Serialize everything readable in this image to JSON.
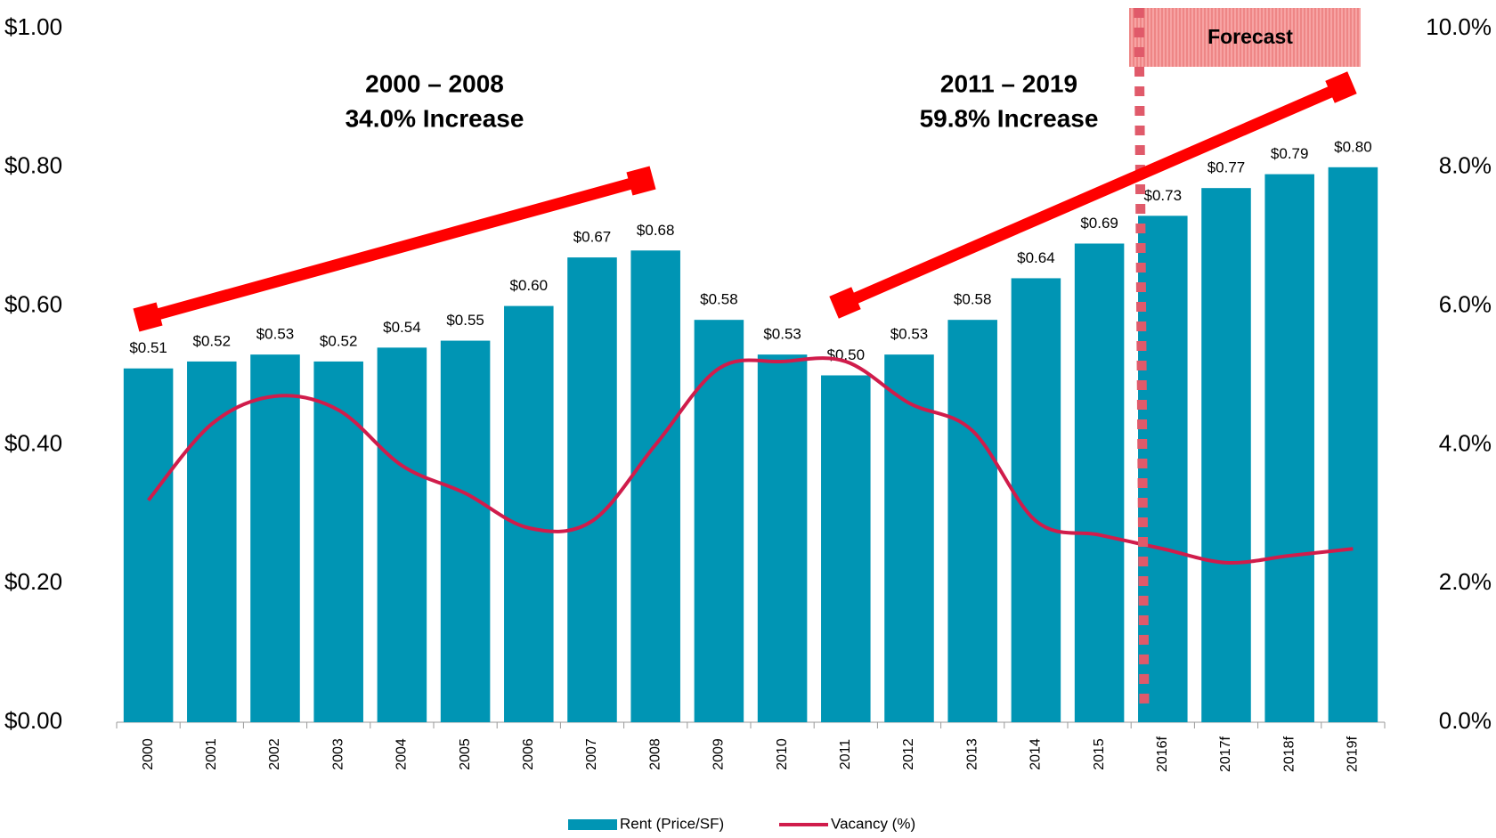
{
  "chart_data": {
    "type": "bar_line",
    "annotations": [
      "2000 – 2008",
      "34.0% Increase",
      "2011 – 2019",
      "59.8% Increase",
      "Forecast"
    ],
    "categories": [
      "2000",
      "2001",
      "2002",
      "2003",
      "2004",
      "2005",
      "2006",
      "2007",
      "2008",
      "2009",
      "2010",
      "2011",
      "2012",
      "2013",
      "2014",
      "2015",
      "2016f",
      "2017f",
      "2018f",
      "2019f"
    ],
    "series": [
      {
        "name": "Rent (Price/SF)",
        "color": "#0095b4",
        "type": "bar",
        "values": [
          0.51,
          0.52,
          0.53,
          0.52,
          0.54,
          0.55,
          0.6,
          0.67,
          0.68,
          0.58,
          0.53,
          0.5,
          0.53,
          0.58,
          0.64,
          0.69,
          0.73,
          0.77,
          0.79,
          0.8
        ],
        "value_labels": [
          "$0.51",
          "$0.52",
          "$0.53",
          "$0.52",
          "$0.54",
          "$0.55",
          "$0.60",
          "$0.67",
          "$0.68",
          "$0.58",
          "$0.53",
          "$0.50",
          "$0.53",
          "$0.58",
          "$0.64",
          "$0.69",
          "$0.73",
          "$0.77",
          "$0.79",
          "$0.80"
        ]
      },
      {
        "name": "Vacancy (%)",
        "color": "#d01c4b",
        "type": "line",
        "axis": "y2",
        "values": [
          3.2,
          4.3,
          4.7,
          4.5,
          3.7,
          3.3,
          2.8,
          2.9,
          4.0,
          5.1,
          5.2,
          5.2,
          4.6,
          4.2,
          2.9,
          2.7,
          2.5,
          2.3,
          2.4,
          2.5
        ]
      }
    ],
    "ylim": [
      0,
      1
    ],
    "yticks": [
      {
        "value": 0,
        "label": "$0.00"
      },
      {
        "value": 0.2,
        "label": "$0.20"
      },
      {
        "value": 0.4,
        "label": "$0.40"
      },
      {
        "value": 0.6,
        "label": "$0.60"
      },
      {
        "value": 0.8,
        "label": "$0.80"
      },
      {
        "value": 1,
        "label": "$1.00"
      }
    ],
    "y2lim": [
      0,
      10
    ],
    "y2ticks": [
      {
        "value": 0,
        "label": "0.0%"
      },
      {
        "value": 2,
        "label": "2.0%"
      },
      {
        "value": 4,
        "label": "4.0%"
      },
      {
        "value": 6,
        "label": "6.0%"
      },
      {
        "value": 8,
        "label": "8.0%"
      },
      {
        "value": 10,
        "label": "10.0%"
      }
    ],
    "legend": "bottom"
  }
}
